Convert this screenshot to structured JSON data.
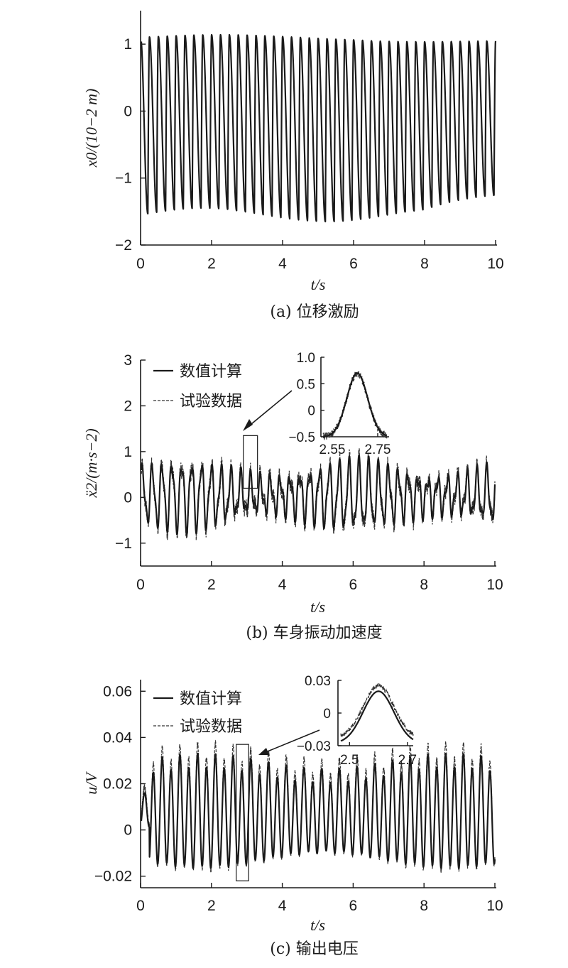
{
  "chart_data": [
    {
      "id": "a",
      "type": "line",
      "caption": "(a) 位移激励",
      "ylabel": "x0/(10−2 m)",
      "xlabel": "t/s",
      "xlim": [
        0,
        10
      ],
      "ylim": [
        -2,
        1.5
      ],
      "xticks": [
        "0",
        "2",
        "4",
        "6",
        "8",
        "10"
      ],
      "yticks": [
        "−2",
        "−1",
        "0",
        "1"
      ],
      "series": [
        {
          "description": "periodic displacement excitation, ~4 cycles per second",
          "frequency_hz": 4.0,
          "peak": 1.1,
          "trough": -1.55
        }
      ]
    },
    {
      "id": "b",
      "type": "line",
      "caption": "(b) 车身振动加速度",
      "ylabel": "ẍ2/(m·s−2)",
      "xlabel": "t/s",
      "xlim": [
        0,
        10
      ],
      "ylim": [
        -1.5,
        3
      ],
      "xticks": [
        "0",
        "2",
        "4",
        "6",
        "8",
        "10"
      ],
      "yticks": [
        "−1",
        "0",
        "1",
        "2",
        "3"
      ],
      "legend": {
        "position": "top-left",
        "entries": [
          "数值计算",
          "试验数据"
        ]
      },
      "series": [
        {
          "name": "数值计算",
          "style": "solid",
          "frequency_hz": 3.6,
          "amplitude": 0.7
        },
        {
          "name": "试验数据",
          "style": "dashed",
          "frequency_hz": 3.6,
          "amplitude": 0.75
        }
      ],
      "zoom_box": {
        "x_range": [
          2.9,
          3.3
        ],
        "y_range": [
          0.2,
          1.35
        ]
      },
      "inset": {
        "xlim": [
          2.5,
          2.8
        ],
        "ylim": [
          -0.5,
          1.0
        ],
        "xticks": [
          "2.55",
          "2.75"
        ],
        "yticks": [
          "1.0",
          "0.5",
          "0",
          "−0.5"
        ],
        "peak": {
          "x": 2.66,
          "y": 0.7
        }
      }
    },
    {
      "id": "c",
      "type": "line",
      "caption": "(c) 输出电压",
      "ylabel": "u/V",
      "xlabel": "t/s",
      "xlim": [
        0,
        10
      ],
      "ylim": [
        -0.025,
        0.065
      ],
      "xticks": [
        "0",
        "2",
        "4",
        "6",
        "8",
        "10"
      ],
      "yticks": [
        "−0.02",
        "0",
        "0.02",
        "0.04",
        "0.06"
      ],
      "legend": {
        "position": "top-left",
        "entries": [
          "数值计算",
          "试验数据"
        ]
      },
      "series": [
        {
          "name": "数值计算",
          "style": "solid",
          "frequency_hz": 4.0,
          "peak": 0.03,
          "trough": -0.02
        },
        {
          "name": "试验数据",
          "style": "dashed",
          "frequency_hz": 4.0,
          "peak": 0.033,
          "trough": -0.022
        }
      ],
      "zoom_box": {
        "x_range": [
          2.7,
          3.05
        ],
        "y_range": [
          -0.022,
          0.037
        ]
      },
      "inset": {
        "xlim": [
          2.46,
          2.72
        ],
        "ylim": [
          -0.03,
          0.03
        ],
        "xticks": [
          "2.5",
          "2.7"
        ],
        "yticks": [
          "0.03",
          "0",
          "−0.03"
        ],
        "peak": {
          "x": 2.6,
          "y": 0.02
        }
      }
    }
  ]
}
